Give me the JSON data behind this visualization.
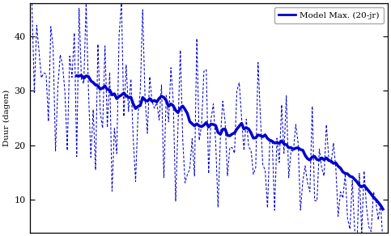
{
  "ylabel": "Duur (dagen)",
  "ylim": [
    4,
    46
  ],
  "yticks": [
    10,
    20,
    30,
    40
  ],
  "legend_label": "Model Max. (20-jr)",
  "line_color": "#0000cc",
  "bg_color": "white",
  "n_points": 150,
  "seed": 7
}
